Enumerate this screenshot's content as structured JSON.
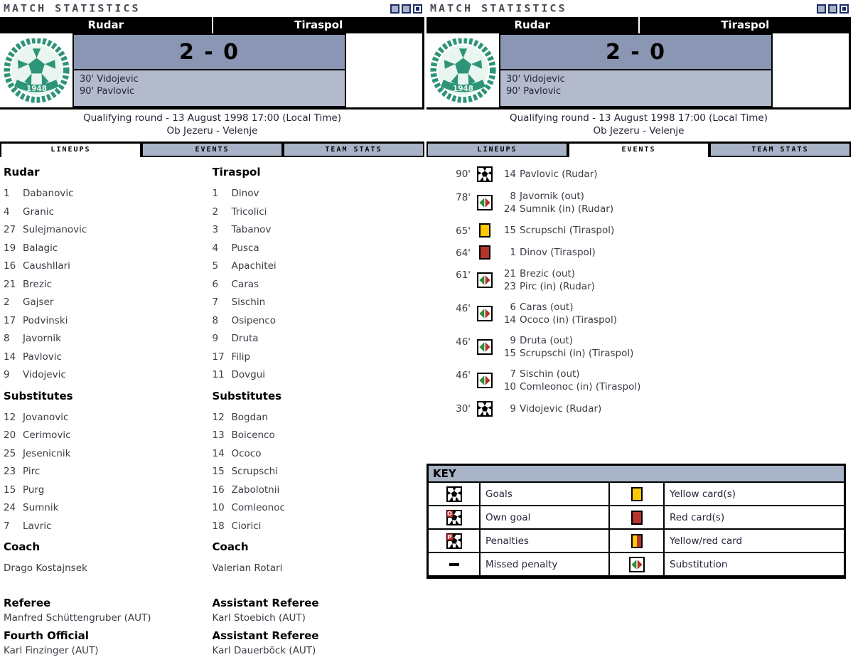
{
  "title": "MATCH STATISTICS",
  "titlebar": {
    "squares": [
      "inactive",
      "inactive",
      "active"
    ]
  },
  "colors": {
    "score_bg": "#8a96b3",
    "scorers_bg": "#b2bacb",
    "tab_bg": "#a9b3c7",
    "square_navy": "#1b2b66",
    "logo_green": "#2e9478",
    "sub_green": "#2f8f3c",
    "sub_red": "#b23327",
    "card_yellow": "#fdc800",
    "card_red": "#b5342c"
  },
  "scoreboard": {
    "home_team": "Rudar",
    "away_team": "Tiraspol",
    "score": "2 - 0",
    "scorers": [
      "30' Vidojevic",
      "90' Pavlovic"
    ],
    "round_line": "Qualifying round - 13 August 1998 17:00 (Local Time)",
    "venue_line": "Ob Jezeru - Velenje",
    "logo_year": "1948"
  },
  "tabs": [
    "LINEUPS",
    "EVENTS",
    "TEAM STATS"
  ],
  "lineups": {
    "home": {
      "team": "Rudar",
      "players": [
        {
          "num": "1",
          "name": "Dabanovic"
        },
        {
          "num": "4",
          "name": "Granic"
        },
        {
          "num": "27",
          "name": "Sulejmanovic"
        },
        {
          "num": "19",
          "name": "Balagic"
        },
        {
          "num": "16",
          "name": "Caushllari"
        },
        {
          "num": "21",
          "name": "Brezic"
        },
        {
          "num": "2",
          "name": "Gajser"
        },
        {
          "num": "17",
          "name": "Podvinski"
        },
        {
          "num": "8",
          "name": "Javornik"
        },
        {
          "num": "14",
          "name": "Pavlovic"
        },
        {
          "num": "9",
          "name": "Vidojevic"
        }
      ],
      "subs_label": "Substitutes",
      "subs": [
        {
          "num": "12",
          "name": "Jovanovic"
        },
        {
          "num": "20",
          "name": "Cerimovic"
        },
        {
          "num": "25",
          "name": "Jesenicnik"
        },
        {
          "num": "23",
          "name": "Pirc"
        },
        {
          "num": "15",
          "name": "Purg"
        },
        {
          "num": "24",
          "name": "Sumnik"
        },
        {
          "num": "7",
          "name": "Lavric"
        }
      ],
      "coach_label": "Coach",
      "coach": "Drago Kostajnsek"
    },
    "away": {
      "team": "Tiraspol",
      "players": [
        {
          "num": "1",
          "name": "Dinov"
        },
        {
          "num": "2",
          "name": "Tricolici"
        },
        {
          "num": "3",
          "name": "Tabanov"
        },
        {
          "num": "4",
          "name": "Pusca"
        },
        {
          "num": "5",
          "name": "Apachitei"
        },
        {
          "num": "6",
          "name": "Caras"
        },
        {
          "num": "7",
          "name": "Sischin"
        },
        {
          "num": "8",
          "name": "Osipenco"
        },
        {
          "num": "9",
          "name": "Druta"
        },
        {
          "num": "17",
          "name": "Filip"
        },
        {
          "num": "11",
          "name": "Dovgui"
        }
      ],
      "subs_label": "Substitutes",
      "subs": [
        {
          "num": "12",
          "name": "Bogdan"
        },
        {
          "num": "13",
          "name": "Boicenco"
        },
        {
          "num": "14",
          "name": "Ococo"
        },
        {
          "num": "15",
          "name": "Scrupschi"
        },
        {
          "num": "16",
          "name": "Zabolotnii"
        },
        {
          "num": "10",
          "name": "Comleonoc"
        },
        {
          "num": "18",
          "name": "Ciorici"
        }
      ],
      "coach_label": "Coach",
      "coach": "Valerian Rotari"
    }
  },
  "officials": [
    {
      "role": "Referee",
      "name": "Manfred Schüttengruber (AUT)"
    },
    {
      "role": "Assistant Referee",
      "name": "Karl Stoebich (AUT)"
    },
    {
      "role": "Fourth Official",
      "name": "Karl Finzinger (AUT)"
    },
    {
      "role": "Assistant Referee",
      "name": "Karl Dauerböck (AUT)"
    }
  ],
  "events": [
    {
      "time": "90'",
      "icon": "goal",
      "lines": [
        {
          "num": "14",
          "text": "Pavlovic (Rudar)"
        }
      ]
    },
    {
      "time": "78'",
      "icon": "substitution",
      "lines": [
        {
          "num": "8",
          "text": "Javornik (out)"
        },
        {
          "num": "24",
          "text": "Sumnik (in) (Rudar)"
        }
      ]
    },
    {
      "time": "65'",
      "icon": "yellow-card",
      "lines": [
        {
          "num": "15",
          "text": "Scrupschi (Tiraspol)"
        }
      ]
    },
    {
      "time": "64'",
      "icon": "red-card",
      "lines": [
        {
          "num": "1",
          "text": "Dinov (Tiraspol)"
        }
      ]
    },
    {
      "time": "61'",
      "icon": "substitution",
      "lines": [
        {
          "num": "21",
          "text": "Brezic (out)"
        },
        {
          "num": "23",
          "text": "Pirc (in) (Rudar)"
        }
      ]
    },
    {
      "time": "46'",
      "icon": "substitution",
      "lines": [
        {
          "num": "6",
          "text": "Caras (out)"
        },
        {
          "num": "14",
          "text": "Ococo (in) (Tiraspol)"
        }
      ]
    },
    {
      "time": "46'",
      "icon": "substitution",
      "lines": [
        {
          "num": "9",
          "text": "Druta (out)"
        },
        {
          "num": "15",
          "text": "Scrupschi (in) (Tiraspol)"
        }
      ]
    },
    {
      "time": "46'",
      "icon": "substitution",
      "lines": [
        {
          "num": "7",
          "text": "Sischin (out)"
        },
        {
          "num": "10",
          "text": "Comleonoc (in) (Tiraspol)"
        }
      ]
    },
    {
      "time": "30'",
      "icon": "goal",
      "lines": [
        {
          "num": "9",
          "text": "Vidojevic (Rudar)"
        }
      ]
    }
  ],
  "key": {
    "title": "KEY",
    "rows": [
      {
        "left_icon": "goal",
        "left_label": "Goals",
        "right_icon": "yellow-card",
        "right_label": "Yellow card(s)"
      },
      {
        "left_icon": "own-goal",
        "left_label": "Own goal",
        "right_icon": "red-card",
        "right_label": "Red card(s)"
      },
      {
        "left_icon": "penalty",
        "left_label": "Penalties",
        "right_icon": "yellow-red-card",
        "right_label": "Yellow/red card"
      },
      {
        "left_icon": "missed-penalty",
        "left_label": "Missed penalty",
        "right_icon": "substitution",
        "right_label": "Substitution"
      }
    ]
  }
}
